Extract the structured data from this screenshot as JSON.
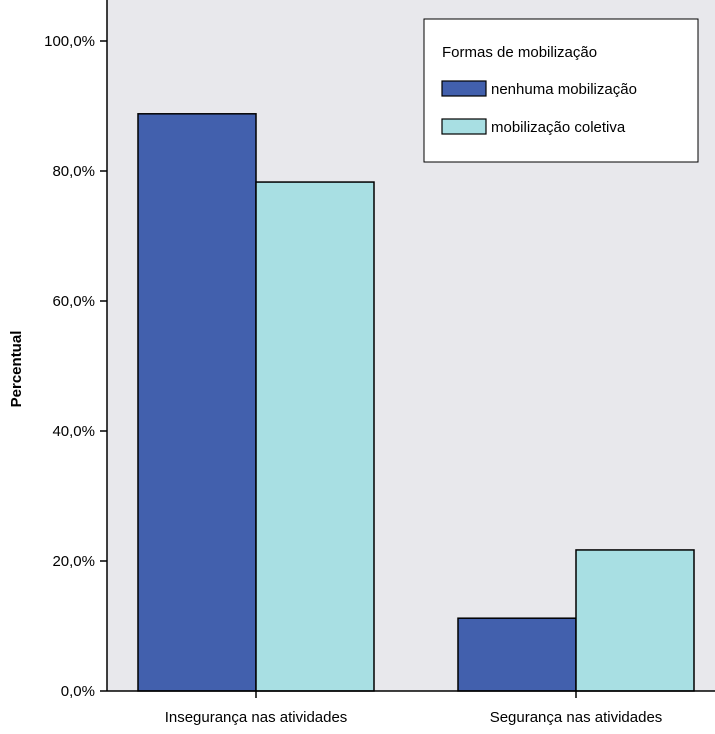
{
  "colors": {
    "plot_background": "#e8e8ec",
    "series_dark": "#4260ad",
    "series_light": "#a8dfe3"
  },
  "chart_data": {
    "type": "bar",
    "title": "",
    "xlabel": "",
    "ylabel": "Percentual",
    "ylim": [
      0,
      100
    ],
    "yticks": [
      0,
      20,
      40,
      60,
      80,
      100
    ],
    "ytick_labels": [
      "0,0%",
      "20,0%",
      "40,0%",
      "60,0%",
      "80,0%",
      "100,0%"
    ],
    "categories": [
      "Insegurança nas atividades",
      "Segurança nas atividades"
    ],
    "series": [
      {
        "name": "nenhuma mobilização",
        "color": "#4260ad",
        "values": [
          88.8,
          11.2
        ]
      },
      {
        "name": "mobilização coletiva",
        "color": "#a8dfe3",
        "values": [
          78.3,
          21.7
        ]
      }
    ],
    "legend": {
      "title": "Formas de mobilização",
      "position": "top-right"
    },
    "grid": false
  }
}
